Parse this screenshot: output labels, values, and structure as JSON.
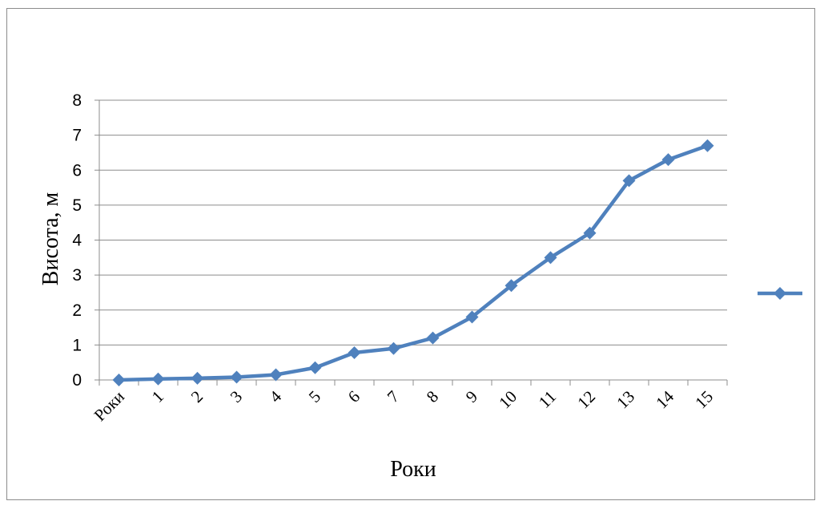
{
  "chart_data": {
    "type": "line",
    "categories": [
      "Роки",
      "1",
      "2",
      "3",
      "4",
      "5",
      "6",
      "7",
      "8",
      "9",
      "10",
      "11",
      "12",
      "13",
      "14",
      "15"
    ],
    "values": [
      0,
      0.03,
      0.05,
      0.08,
      0.15,
      0.35,
      0.78,
      0.9,
      1.2,
      1.8,
      2.7,
      3.5,
      4.2,
      5.7,
      6.3,
      6.7
    ],
    "xlabel": "Роки",
    "ylabel": "Висота, м",
    "ylim": [
      0,
      8
    ],
    "yticks": [
      "0",
      "1",
      "2",
      "3",
      "4",
      "5",
      "6",
      "7",
      "8"
    ],
    "grid": "horizontal",
    "legend": "right",
    "colors": {
      "series": "#4F81BD",
      "grid": "#8c8c8c",
      "axis": "#8c8c8c"
    }
  }
}
